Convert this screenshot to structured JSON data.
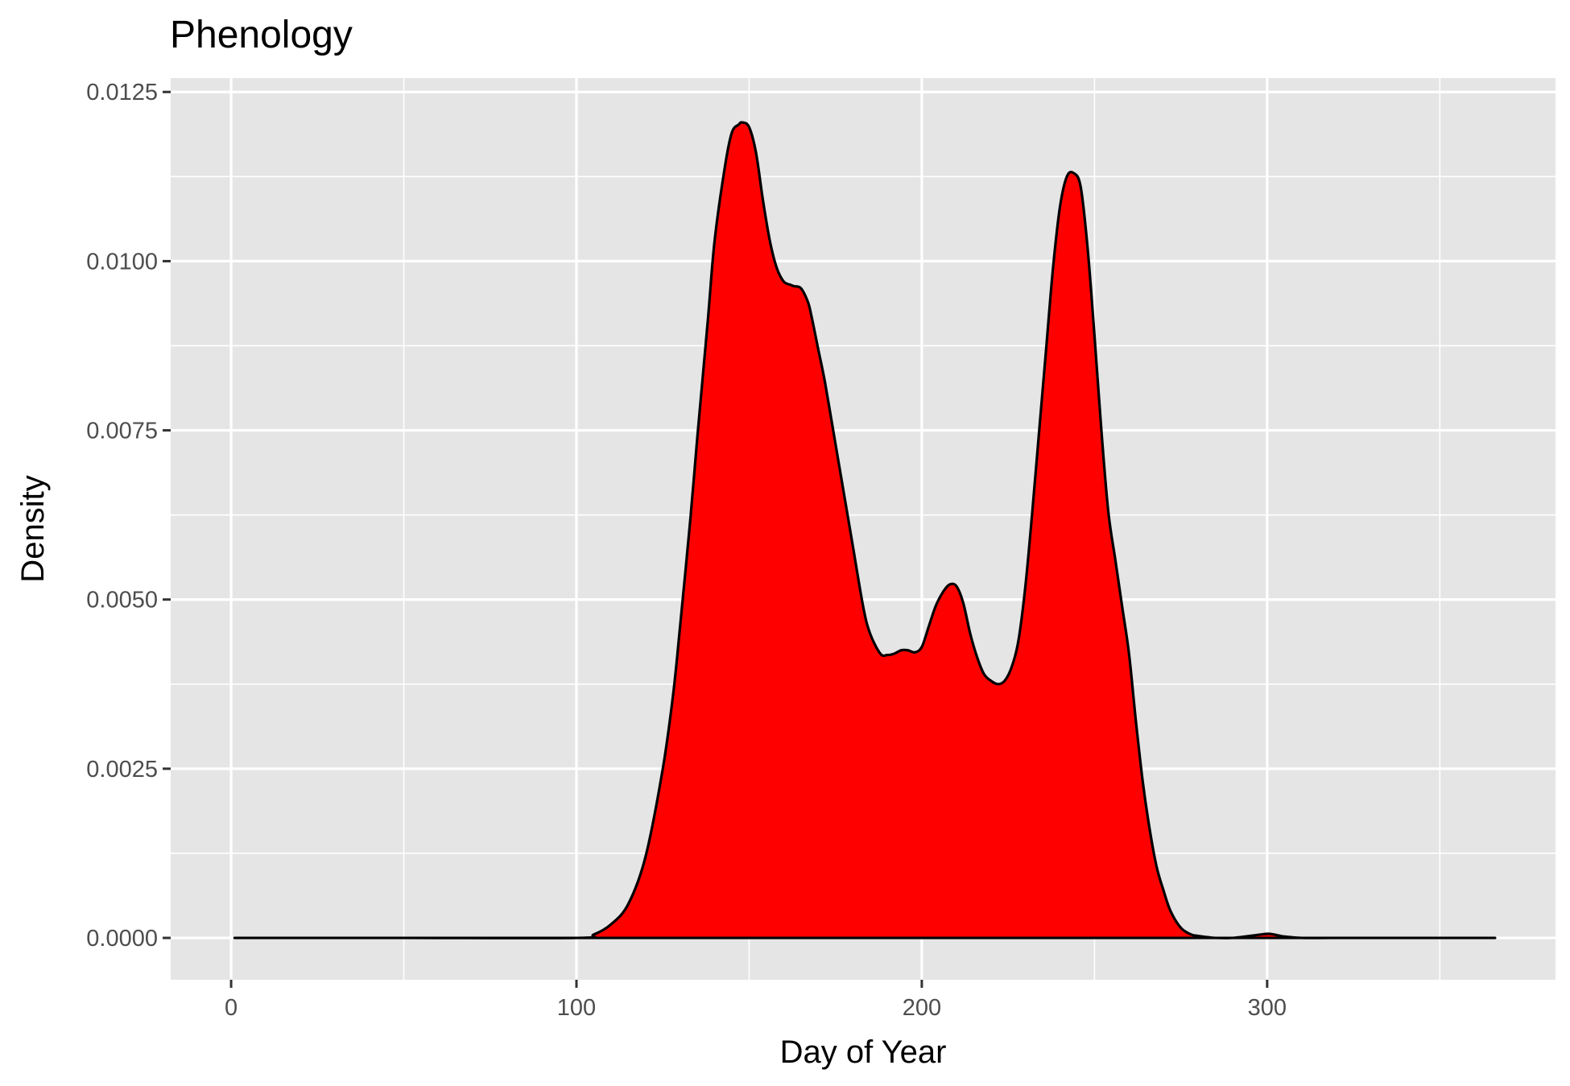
{
  "chart_data": {
    "type": "area",
    "title": "Phenology",
    "xlabel": "Day of Year",
    "ylabel": "Density",
    "xlim": [
      -17.5,
      383.5
    ],
    "ylim": [
      -0.000618,
      0.012705
    ],
    "x_ticks": [
      0,
      100,
      200,
      300
    ],
    "x_tick_labels": [
      "0",
      "100",
      "200",
      "300"
    ],
    "y_ticks": [
      0,
      0.0025,
      0.005,
      0.0075,
      0.01,
      0.0125
    ],
    "y_tick_labels": [
      "0.0000",
      "0.0025",
      "0.0050",
      "0.0075",
      "0.0100",
      "0.0125"
    ],
    "grid": true,
    "panel_background": "#e5e5e5",
    "fill_color": "#ff0000",
    "line_color": "#000000",
    "series": [
      {
        "x": [
          1,
          50,
          100,
          105,
          110,
          115,
          120,
          125,
          128,
          130,
          133,
          135,
          138,
          140,
          143,
          145,
          147,
          148,
          150,
          152,
          154,
          156,
          158,
          160,
          162,
          163,
          165,
          167,
          168,
          170,
          172,
          175,
          178,
          180,
          183,
          185,
          188,
          190,
          192,
          194,
          196,
          198,
          200,
          202,
          204,
          206,
          208,
          210,
          212,
          214,
          216,
          218,
          220,
          222,
          224,
          226,
          228,
          230,
          232,
          234,
          236,
          238,
          240,
          242,
          244,
          246,
          248,
          250,
          252,
          254,
          256,
          258,
          260,
          262,
          264,
          266,
          268,
          270,
          272,
          275,
          278,
          280,
          283,
          285,
          290,
          295,
          300,
          302,
          305,
          310,
          320,
          340,
          366
        ],
        "y": [
          0,
          0,
          0,
          5e-05,
          0.0002,
          0.0005,
          0.0012,
          0.0025,
          0.0036,
          0.0046,
          0.0062,
          0.0074,
          0.0091,
          0.0103,
          0.0114,
          0.0119,
          0.01202,
          0.01205,
          0.01198,
          0.0116,
          0.0109,
          0.0103,
          0.0099,
          0.0097,
          0.00965,
          0.00963,
          0.0096,
          0.0094,
          0.0092,
          0.0087,
          0.0082,
          0.0073,
          0.0064,
          0.0058,
          0.0049,
          0.0045,
          0.0042,
          0.00418,
          0.0042,
          0.00425,
          0.00425,
          0.00422,
          0.0043,
          0.0046,
          0.0049,
          0.0051,
          0.00522,
          0.0052,
          0.00495,
          0.0045,
          0.00415,
          0.0039,
          0.0038,
          0.00375,
          0.0038,
          0.004,
          0.0044,
          0.0052,
          0.0063,
          0.0075,
          0.0087,
          0.0099,
          0.0108,
          0.01125,
          0.0113,
          0.0111,
          0.0102,
          0.0089,
          0.0075,
          0.0063,
          0.0056,
          0.0049,
          0.0042,
          0.0032,
          0.0023,
          0.0016,
          0.00105,
          0.0007,
          0.0004,
          0.00015,
          5e-05,
          3e-05,
          1e-05,
          0,
          0,
          3e-05,
          6e-05,
          5e-05,
          2e-05,
          0,
          0,
          0,
          0
        ]
      }
    ]
  }
}
